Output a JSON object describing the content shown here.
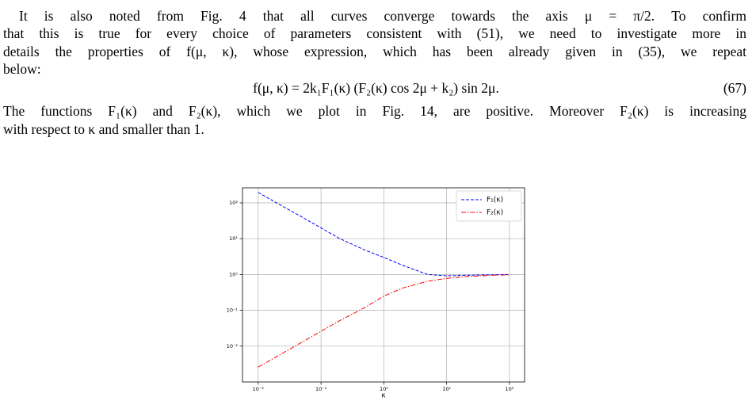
{
  "text_lines": [
    "It is also noted from Fig. 4 that all curves converge towards the axis μ = π/2. To confirm",
    "that this is true for every choice of parameters consistent with (51), we need to investigate more in",
    "details the properties of f(μ, κ), whose expression, which has been already given in (35), we repeat",
    "below:"
  ],
  "equation": {
    "text": "f(μ, κ) = 2k₁F₁(κ) (F₂(κ) cos 2μ + k₂) sin 2μ.",
    "number": "(67)"
  },
  "text_lines_2": [
    "The functions F₁(κ) and F₂(κ), which we plot in Fig. 14, are positive. Moreover F₂(κ) is increasing",
    "with respect to κ and smaller than 1."
  ],
  "chart_data": {
    "type": "line",
    "x_label": "κ",
    "log_x": true,
    "log_y": true,
    "grid": true,
    "legend": "upper right",
    "x": [
      0.01,
      0.02,
      0.05,
      0.1,
      0.2,
      0.5,
      1,
      2,
      5,
      10,
      20,
      50,
      100
    ],
    "series": [
      {
        "name": "F₁(κ)",
        "color": "#0000ff",
        "dash": "dashed",
        "values": [
          195,
          98,
          40,
          20,
          10,
          4.8,
          3.0,
          1.8,
          1.0,
          0.92,
          0.95,
          0.98,
          1.0
        ]
      },
      {
        "name": "F₂(κ)",
        "color": "#ff0000",
        "dash": "dashdot",
        "values": [
          0.0026,
          0.0052,
          0.013,
          0.026,
          0.052,
          0.12,
          0.25,
          0.42,
          0.65,
          0.78,
          0.87,
          0.95,
          0.98
        ]
      }
    ],
    "xlim": [
      0.00562,
      174
    ],
    "ylim": [
      0.001,
      263
    ],
    "xticks": [
      {
        "value": 0.01,
        "label": "10⁻²"
      },
      {
        "value": 0.1,
        "label": "10⁻¹"
      },
      {
        "value": 1,
        "label": "10⁰"
      },
      {
        "value": 10,
        "label": "10¹"
      },
      {
        "value": 100,
        "label": "10²"
      }
    ],
    "yticks": [
      {
        "value": 0.01,
        "label": "10⁻²"
      },
      {
        "value": 0.1,
        "label": "10⁻¹"
      },
      {
        "value": 1,
        "label": "10⁰"
      },
      {
        "value": 10,
        "label": "10¹"
      },
      {
        "value": 100,
        "label": "10²"
      }
    ]
  }
}
